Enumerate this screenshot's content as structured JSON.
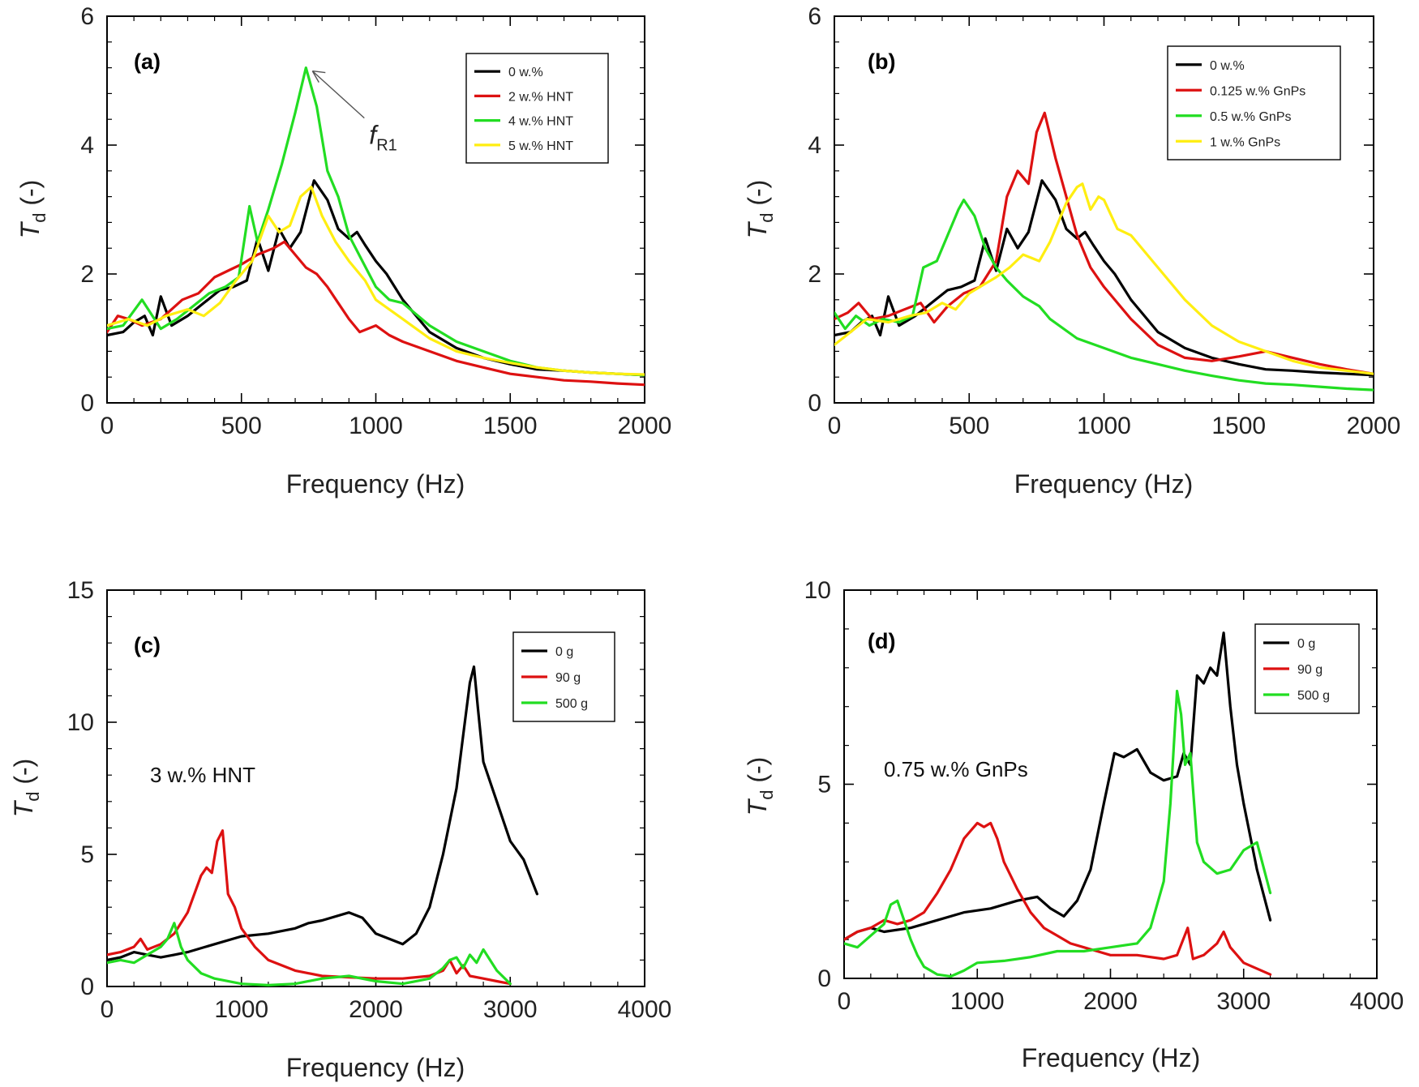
{
  "chart_data": [
    {
      "type": "line",
      "panel_label": "(a)",
      "xlabel": "Frequency (Hz)",
      "ylabel_main": "T",
      "ylabel_sub": "d",
      "ylabel_tail": " (-)",
      "xlim": [
        0,
        2000
      ],
      "ylim": [
        0,
        6
      ],
      "xticks": [
        0,
        500,
        1000,
        1500,
        2000
      ],
      "yticks": [
        0,
        2,
        4,
        6
      ],
      "legend": "top-right",
      "annotation": {
        "main": "f",
        "sub": "R1",
        "x": 740,
        "y": 5.2
      },
      "series": [
        {
          "name": "0 w.%",
          "color": "#000000",
          "x": [
            0,
            60,
            100,
            140,
            170,
            200,
            240,
            300,
            360,
            420,
            470,
            520,
            560,
            600,
            640,
            680,
            720,
            770,
            820,
            860,
            900,
            930,
            960,
            1000,
            1040,
            1100,
            1200,
            1300,
            1400,
            1500,
            1600,
            1700,
            1800,
            1900,
            2000
          ],
          "y": [
            1.05,
            1.1,
            1.25,
            1.35,
            1.05,
            1.65,
            1.2,
            1.35,
            1.55,
            1.75,
            1.8,
            1.9,
            2.55,
            2.05,
            2.7,
            2.4,
            2.65,
            3.45,
            3.15,
            2.7,
            2.55,
            2.65,
            2.45,
            2.2,
            2.0,
            1.6,
            1.1,
            0.85,
            0.7,
            0.6,
            0.52,
            0.5,
            0.47,
            0.45,
            0.43
          ]
        },
        {
          "name": "2 w.% HNT",
          "color": "#dd1111",
          "x": [
            0,
            40,
            80,
            130,
            200,
            280,
            340,
            400,
            450,
            500,
            560,
            620,
            660,
            700,
            740,
            780,
            820,
            860,
            900,
            940,
            1000,
            1050,
            1100,
            1200,
            1300,
            1400,
            1500,
            1600,
            1700,
            1800,
            1900,
            2000
          ],
          "y": [
            1.1,
            1.35,
            1.3,
            1.2,
            1.3,
            1.6,
            1.7,
            1.95,
            2.05,
            2.15,
            2.3,
            2.4,
            2.5,
            2.3,
            2.1,
            2.0,
            1.8,
            1.55,
            1.3,
            1.1,
            1.2,
            1.05,
            0.95,
            0.8,
            0.65,
            0.55,
            0.45,
            0.4,
            0.35,
            0.33,
            0.3,
            0.28
          ]
        },
        {
          "name": "4 w.% HNT",
          "color": "#22dd22",
          "x": [
            0,
            60,
            130,
            200,
            260,
            320,
            380,
            440,
            490,
            530,
            560,
            600,
            650,
            700,
            740,
            780,
            820,
            860,
            900,
            950,
            1000,
            1050,
            1100,
            1200,
            1300,
            1400,
            1500,
            1600,
            1700,
            1800,
            1900,
            2000
          ],
          "y": [
            1.15,
            1.2,
            1.6,
            1.15,
            1.3,
            1.5,
            1.7,
            1.8,
            1.95,
            3.05,
            2.5,
            3.0,
            3.7,
            4.5,
            5.2,
            4.6,
            3.6,
            3.2,
            2.6,
            2.2,
            1.8,
            1.6,
            1.55,
            1.2,
            0.95,
            0.8,
            0.65,
            0.55,
            0.5,
            0.47,
            0.45,
            0.43
          ]
        },
        {
          "name": "5 w.% HNT",
          "color": "#ffee11",
          "x": [
            0,
            80,
            150,
            220,
            300,
            360,
            420,
            480,
            540,
            600,
            640,
            680,
            720,
            760,
            800,
            850,
            900,
            960,
            1000,
            1100,
            1200,
            1300,
            1400,
            1500,
            1600,
            1700,
            1800,
            1900,
            2000
          ],
          "y": [
            1.2,
            1.3,
            1.2,
            1.35,
            1.45,
            1.35,
            1.55,
            1.9,
            2.2,
            2.9,
            2.65,
            2.75,
            3.2,
            3.35,
            2.9,
            2.5,
            2.2,
            1.9,
            1.6,
            1.3,
            1.0,
            0.8,
            0.7,
            0.62,
            0.55,
            0.5,
            0.47,
            0.45,
            0.44
          ]
        }
      ]
    },
    {
      "type": "line",
      "panel_label": "(b)",
      "xlabel": "Frequency (Hz)",
      "ylabel_main": "T",
      "ylabel_sub": "d",
      "ylabel_tail": " (-)",
      "xlim": [
        0,
        2000
      ],
      "ylim": [
        0,
        6
      ],
      "xticks": [
        0,
        500,
        1000,
        1500,
        2000
      ],
      "yticks": [
        0,
        2,
        4,
        6
      ],
      "legend": "top-right",
      "series": [
        {
          "name": "0 w.%",
          "color": "#000000",
          "x": [
            0,
            60,
            100,
            140,
            170,
            200,
            240,
            300,
            360,
            420,
            470,
            520,
            560,
            600,
            640,
            680,
            720,
            770,
            820,
            860,
            900,
            930,
            960,
            1000,
            1040,
            1100,
            1200,
            1300,
            1400,
            1500,
            1600,
            1700,
            1800,
            1900,
            2000
          ],
          "y": [
            1.05,
            1.1,
            1.25,
            1.35,
            1.05,
            1.65,
            1.2,
            1.35,
            1.55,
            1.75,
            1.8,
            1.9,
            2.55,
            2.05,
            2.7,
            2.4,
            2.65,
            3.45,
            3.15,
            2.7,
            2.55,
            2.65,
            2.45,
            2.2,
            2.0,
            1.6,
            1.1,
            0.85,
            0.7,
            0.6,
            0.52,
            0.5,
            0.47,
            0.45,
            0.43
          ]
        },
        {
          "name": "0.125 w.% GnPs",
          "color": "#dd1111",
          "x": [
            0,
            50,
            90,
            140,
            200,
            260,
            320,
            370,
            420,
            480,
            540,
            600,
            640,
            680,
            720,
            750,
            780,
            820,
            860,
            900,
            950,
            1000,
            1100,
            1200,
            1300,
            1400,
            1500,
            1600,
            1700,
            1800,
            1900,
            2000
          ],
          "y": [
            1.3,
            1.4,
            1.55,
            1.3,
            1.35,
            1.45,
            1.55,
            1.25,
            1.5,
            1.7,
            1.8,
            2.2,
            3.2,
            3.6,
            3.4,
            4.2,
            4.5,
            3.8,
            3.2,
            2.6,
            2.1,
            1.8,
            1.3,
            0.9,
            0.7,
            0.65,
            0.72,
            0.8,
            0.7,
            0.6,
            0.52,
            0.45
          ]
        },
        {
          "name": "0.5 w.% GnPs",
          "color": "#22dd22",
          "x": [
            0,
            40,
            80,
            130,
            180,
            240,
            290,
            330,
            380,
            420,
            460,
            480,
            520,
            560,
            600,
            640,
            700,
            760,
            800,
            900,
            1000,
            1100,
            1200,
            1300,
            1400,
            1500,
            1600,
            1700,
            1800,
            1900,
            2000
          ],
          "y": [
            1.4,
            1.15,
            1.35,
            1.2,
            1.3,
            1.25,
            1.35,
            2.1,
            2.2,
            2.6,
            3.0,
            3.15,
            2.9,
            2.4,
            2.1,
            1.9,
            1.65,
            1.5,
            1.3,
            1.0,
            0.85,
            0.7,
            0.6,
            0.5,
            0.42,
            0.35,
            0.3,
            0.28,
            0.25,
            0.22,
            0.2
          ]
        },
        {
          "name": "1 w.% GnPs",
          "color": "#ffee11",
          "x": [
            0,
            60,
            120,
            200,
            280,
            340,
            400,
            450,
            500,
            560,
            600,
            650,
            700,
            760,
            800,
            860,
            900,
            920,
            950,
            980,
            1000,
            1050,
            1100,
            1200,
            1300,
            1400,
            1500,
            1600,
            1700,
            1800,
            1900,
            2000
          ],
          "y": [
            0.9,
            1.1,
            1.3,
            1.25,
            1.35,
            1.4,
            1.55,
            1.45,
            1.7,
            1.85,
            1.95,
            2.1,
            2.3,
            2.2,
            2.5,
            3.1,
            3.35,
            3.4,
            3.0,
            3.2,
            3.15,
            2.7,
            2.6,
            2.1,
            1.6,
            1.2,
            0.95,
            0.8,
            0.65,
            0.55,
            0.5,
            0.45
          ]
        }
      ]
    },
    {
      "type": "line",
      "panel_label": "(c)",
      "text_annotation": "3 w.% HNT",
      "xlabel": "Frequency (Hz)",
      "ylabel_main": "T",
      "ylabel_sub": "d",
      "ylabel_tail": " (-)",
      "xlim": [
        0,
        4000
      ],
      "ylim": [
        0,
        15
      ],
      "xticks": [
        0,
        1000,
        2000,
        3000,
        4000
      ],
      "yticks": [
        0,
        5,
        10,
        15
      ],
      "legend": "top-right",
      "series": [
        {
          "name": "0 g",
          "color": "#000000",
          "x": [
            0,
            100,
            200,
            300,
            400,
            500,
            600,
            800,
            1000,
            1200,
            1400,
            1500,
            1600,
            1800,
            1900,
            2000,
            2100,
            2200,
            2300,
            2400,
            2500,
            2600,
            2650,
            2700,
            2730,
            2760,
            2800,
            2900,
            3000,
            3100,
            3200
          ],
          "y": [
            1.0,
            1.1,
            1.3,
            1.2,
            1.1,
            1.2,
            1.3,
            1.6,
            1.9,
            2.0,
            2.2,
            2.4,
            2.5,
            2.8,
            2.6,
            2.0,
            1.8,
            1.6,
            2.0,
            3.0,
            5.0,
            7.5,
            9.5,
            11.5,
            12.1,
            10.5,
            8.5,
            7.0,
            5.5,
            4.8,
            3.5
          ]
        },
        {
          "name": "90 g",
          "color": "#dd1111",
          "x": [
            0,
            100,
            200,
            250,
            300,
            400,
            500,
            600,
            700,
            740,
            780,
            820,
            860,
            900,
            950,
            1000,
            1100,
            1200,
            1400,
            1600,
            1800,
            2000,
            2200,
            2400,
            2500,
            2550,
            2600,
            2650,
            2700,
            2800,
            2900,
            3000
          ],
          "y": [
            1.2,
            1.3,
            1.5,
            1.8,
            1.4,
            1.6,
            2.0,
            2.8,
            4.2,
            4.5,
            4.3,
            5.5,
            5.9,
            3.5,
            3.0,
            2.2,
            1.5,
            1.0,
            0.6,
            0.4,
            0.35,
            0.3,
            0.3,
            0.4,
            0.6,
            1.0,
            0.5,
            0.8,
            0.4,
            0.3,
            0.2,
            0.1
          ]
        },
        {
          "name": "500 g",
          "color": "#22dd22",
          "x": [
            0,
            100,
            200,
            300,
            400,
            450,
            500,
            550,
            600,
            700,
            800,
            1000,
            1200,
            1400,
            1600,
            1800,
            2000,
            2200,
            2400,
            2500,
            2550,
            2600,
            2650,
            2700,
            2750,
            2800,
            2850,
            2900,
            3000
          ],
          "y": [
            0.9,
            1.0,
            0.9,
            1.2,
            1.5,
            1.8,
            2.4,
            1.5,
            1.0,
            0.5,
            0.3,
            0.1,
            0.05,
            0.1,
            0.3,
            0.4,
            0.2,
            0.1,
            0.3,
            0.7,
            1.0,
            1.1,
            0.7,
            1.2,
            0.9,
            1.4,
            1.0,
            0.6,
            0.1
          ]
        }
      ]
    },
    {
      "type": "line",
      "panel_label": "(d)",
      "text_annotation": "0.75 w.% GnPs",
      "xlabel": "Frequency (Hz)",
      "ylabel_main": "T",
      "ylabel_sub": "d",
      "ylabel_tail": " (-)",
      "xlim": [
        0,
        4000
      ],
      "ylim": [
        0,
        10
      ],
      "xticks": [
        0,
        1000,
        2000,
        3000,
        4000
      ],
      "yticks": [
        0,
        5,
        10
      ],
      "legend": "top-right",
      "series": [
        {
          "name": "0 g",
          "color": "#000000",
          "x": [
            0,
            100,
            200,
            300,
            500,
            700,
            900,
            1100,
            1300,
            1450,
            1550,
            1650,
            1750,
            1850,
            1950,
            2030,
            2100,
            2200,
            2300,
            2400,
            2500,
            2550,
            2600,
            2650,
            2700,
            2750,
            2800,
            2850,
            2900,
            2950,
            3000,
            3100,
            3200
          ],
          "y": [
            1.0,
            1.2,
            1.3,
            1.2,
            1.3,
            1.5,
            1.7,
            1.8,
            2.0,
            2.1,
            1.8,
            1.6,
            2.0,
            2.8,
            4.5,
            5.8,
            5.7,
            5.9,
            5.3,
            5.1,
            5.2,
            5.8,
            5.5,
            7.8,
            7.6,
            8.0,
            7.8,
            8.9,
            7.0,
            5.5,
            4.5,
            2.8,
            1.5
          ]
        },
        {
          "name": "90 g",
          "color": "#dd1111",
          "x": [
            0,
            100,
            200,
            300,
            400,
            500,
            600,
            700,
            800,
            900,
            950,
            1000,
            1050,
            1100,
            1150,
            1200,
            1300,
            1400,
            1500,
            1600,
            1700,
            1800,
            1900,
            2000,
            2200,
            2400,
            2500,
            2580,
            2620,
            2700,
            2800,
            2850,
            2900,
            3000,
            3200
          ],
          "y": [
            1.0,
            1.2,
            1.3,
            1.5,
            1.4,
            1.5,
            1.7,
            2.2,
            2.8,
            3.6,
            3.8,
            4.0,
            3.9,
            4.0,
            3.6,
            3.0,
            2.3,
            1.7,
            1.3,
            1.1,
            0.9,
            0.8,
            0.7,
            0.6,
            0.6,
            0.5,
            0.6,
            1.3,
            0.5,
            0.6,
            0.9,
            1.2,
            0.8,
            0.4,
            0.1
          ]
        },
        {
          "name": "500 g",
          "color": "#22dd22",
          "x": [
            0,
            100,
            200,
            300,
            350,
            400,
            450,
            500,
            550,
            600,
            700,
            800,
            900,
            1000,
            1200,
            1400,
            1600,
            1800,
            2000,
            2200,
            2300,
            2400,
            2450,
            2500,
            2530,
            2560,
            2600,
            2650,
            2700,
            2800,
            2900,
            3000,
            3100,
            3200
          ],
          "y": [
            0.9,
            0.8,
            1.1,
            1.4,
            1.9,
            2.0,
            1.5,
            1.0,
            0.6,
            0.3,
            0.1,
            0.05,
            0.2,
            0.4,
            0.45,
            0.55,
            0.7,
            0.7,
            0.8,
            0.9,
            1.3,
            2.5,
            4.5,
            7.4,
            6.8,
            5.5,
            5.8,
            3.5,
            3.0,
            2.7,
            2.8,
            3.3,
            3.5,
            2.2
          ]
        }
      ]
    }
  ]
}
